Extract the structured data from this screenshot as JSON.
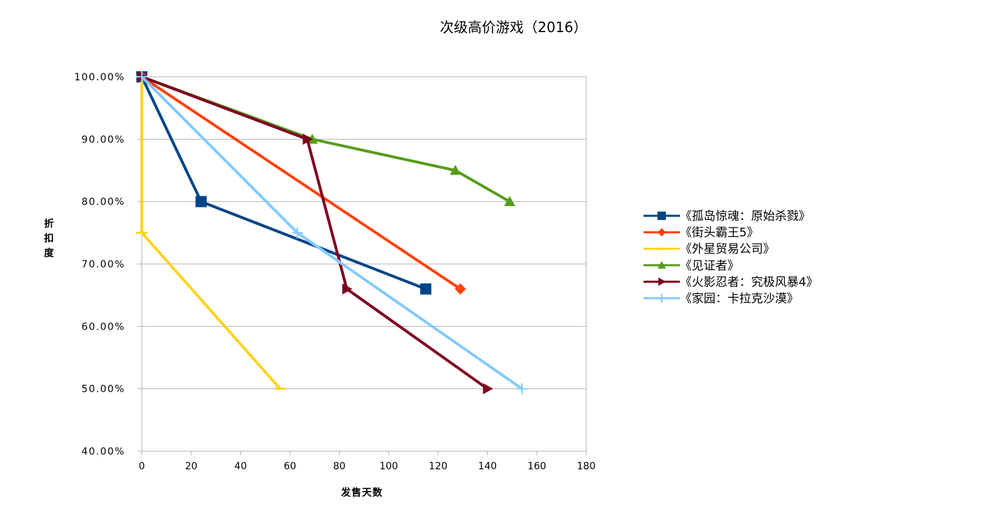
{
  "chart_data": {
    "type": "line",
    "title": "次级高价游戏（2016）",
    "xlabel": "发售天数",
    "ylabel": "折扣度",
    "xlim": [
      0,
      180
    ],
    "ylim": [
      0.4,
      1.0
    ],
    "x_ticks": [
      "0",
      "20",
      "40",
      "60",
      "80",
      "100",
      "120",
      "140",
      "160",
      "180"
    ],
    "y_ticks": [
      "40.00%",
      "50.00%",
      "60.00%",
      "70.00%",
      "80.00%",
      "90.00%",
      "100.00%"
    ],
    "grid": "horizontal",
    "legend_position": "right",
    "series": [
      {
        "name": "《孤岛惊魂：原始杀戮》",
        "color": "#004586",
        "marker": "square",
        "points": [
          [
            0,
            1.0
          ],
          [
            24,
            0.8
          ],
          [
            115,
            0.66
          ]
        ]
      },
      {
        "name": "《街头霸王5》",
        "color": "#ff420e",
        "marker": "diamond",
        "points": [
          [
            0,
            1.0
          ],
          [
            129,
            0.66
          ]
        ]
      },
      {
        "name": "《外星贸易公司》",
        "color": "#ffd320",
        "marker": "dash",
        "points": [
          [
            0,
            1.0
          ],
          [
            0,
            0.75
          ],
          [
            56,
            0.5
          ]
        ]
      },
      {
        "name": "《见证者》",
        "color": "#579d1c",
        "marker": "triangle-up",
        "points": [
          [
            0,
            1.0
          ],
          [
            69,
            0.9
          ],
          [
            127,
            0.85
          ],
          [
            149,
            0.8
          ]
        ]
      },
      {
        "name": "《火影忍者：究极风暴4》",
        "color": "#7e0021",
        "marker": "triangle-right",
        "points": [
          [
            0,
            1.0
          ],
          [
            67,
            0.9
          ],
          [
            83,
            0.66
          ],
          [
            140,
            0.5
          ]
        ]
      },
      {
        "name": "《家园：卡拉克沙漠》",
        "color": "#83caff",
        "marker": "plus",
        "points": [
          [
            0,
            1.0
          ],
          [
            63,
            0.75
          ],
          [
            154,
            0.5
          ]
        ]
      }
    ]
  }
}
